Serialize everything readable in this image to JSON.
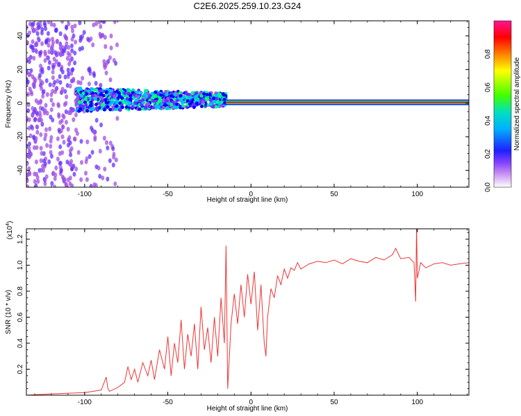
{
  "figure_title": "C2E6.2025.259.10.23.G24",
  "chart_data": [
    {
      "type": "heatmap",
      "title": "C2E6.2025.259.10.23.G24",
      "xlabel": "Height of straight line (km)",
      "ylabel": "Frequency (Hz)",
      "xlim": [
        -135,
        131
      ],
      "ylim": [
        -50,
        49
      ],
      "xticks": [
        -100,
        -50,
        0,
        50,
        100
      ],
      "xtick_labels": [
        "-100",
        "-50",
        "0",
        "50",
        "100"
      ],
      "yticks": [
        -40,
        -20,
        0,
        20,
        40
      ],
      "ytick_labels": [
        "-40",
        "-20",
        "0",
        "20",
        "40"
      ],
      "colorbar": {
        "label": "Normalized spectral amplitude",
        "range": [
          0,
          1
        ],
        "ticks": [
          0.0,
          0.2,
          0.4,
          0.6,
          0.8
        ],
        "tick_labels": [
          "0.0",
          "0.2",
          "0.4",
          "0.6",
          "0.8"
        ],
        "colors": [
          "#ffffff",
          "#a050e0",
          "#6030ff",
          "#0000ff",
          "#00c0ff",
          "#00ff80",
          "#40ff00",
          "#ffff00",
          "#ff8000",
          "#ff0000",
          "#ff1493"
        ]
      },
      "description_points": {
        "diffuse_region_x": [
          -135,
          -80
        ],
        "broadband_region_x": [
          -105,
          -15
        ],
        "narrowband_line_freq": 0.5,
        "narrowband_start_x": -15
      }
    },
    {
      "type": "line",
      "xlabel": "Height of straight line (km)",
      "ylabel": "SNR (10 * v/v)",
      "multiplier": "(x10",
      "multiplier_exp": "4",
      "multiplier_close": ")",
      "xlim": [
        -135,
        131
      ],
      "ylim": [
        0.0,
        1.28
      ],
      "xticks": [
        -100,
        -50,
        0,
        50,
        100
      ],
      "xtick_labels": [
        "-100",
        "-50",
        "0",
        "50",
        "100"
      ],
      "yticks": [
        0.2,
        0.4,
        0.6,
        0.8,
        1.0,
        1.2
      ],
      "ytick_labels": [
        "0.2",
        "0.4",
        "0.6",
        "0.8",
        "1.0",
        "1.2"
      ],
      "color": "#ee3333",
      "series": [
        {
          "name": "SNR",
          "x": [
            -135,
            -120,
            -100,
            -90,
            -87,
            -86,
            -85,
            -80,
            -76,
            -74,
            -72,
            -70,
            -68,
            -65,
            -62,
            -60,
            -58,
            -55,
            -52,
            -50,
            -48,
            -46,
            -44,
            -42,
            -40,
            -38,
            -36,
            -34,
            -32,
            -30,
            -28,
            -26,
            -24,
            -22,
            -20,
            -18,
            -16,
            -15,
            -14,
            -13,
            -12,
            -10,
            -8,
            -6,
            -4,
            -2,
            0,
            2,
            4,
            6,
            8,
            9,
            10,
            12,
            14,
            16,
            18,
            20,
            22,
            24,
            26,
            28,
            30,
            35,
            40,
            45,
            50,
            55,
            60,
            65,
            70,
            75,
            80,
            85,
            87,
            90,
            95,
            98,
            99,
            99.5,
            100,
            102,
            105,
            110,
            115,
            120,
            125,
            131
          ],
          "y": [
            0.0,
            0.01,
            0.02,
            0.04,
            0.14,
            0.05,
            0.03,
            0.06,
            0.1,
            0.22,
            0.12,
            0.2,
            0.1,
            0.25,
            0.15,
            0.27,
            0.12,
            0.35,
            0.2,
            0.45,
            0.15,
            0.4,
            0.25,
            0.58,
            0.2,
            0.47,
            0.3,
            0.55,
            0.2,
            0.68,
            0.35,
            0.52,
            0.25,
            0.6,
            0.3,
            0.75,
            0.4,
            1.15,
            0.05,
            0.3,
            0.55,
            0.78,
            0.55,
            0.85,
            0.6,
            0.93,
            0.7,
            0.95,
            0.5,
            0.85,
            0.4,
            0.3,
            0.6,
            0.82,
            0.75,
            0.92,
            0.85,
            0.97,
            0.9,
            0.98,
            0.96,
            1.02,
            0.97,
            1.01,
            1.03,
            1.02,
            1.04,
            1.01,
            1.05,
            1.03,
            1.02,
            1.06,
            1.04,
            1.08,
            1.13,
            1.05,
            1.06,
            1.02,
            0.72,
            1.3,
            0.9,
            1.02,
            0.98,
            1.01,
            1.02,
            1.0,
            1.01,
            1.02
          ]
        }
      ]
    }
  ]
}
